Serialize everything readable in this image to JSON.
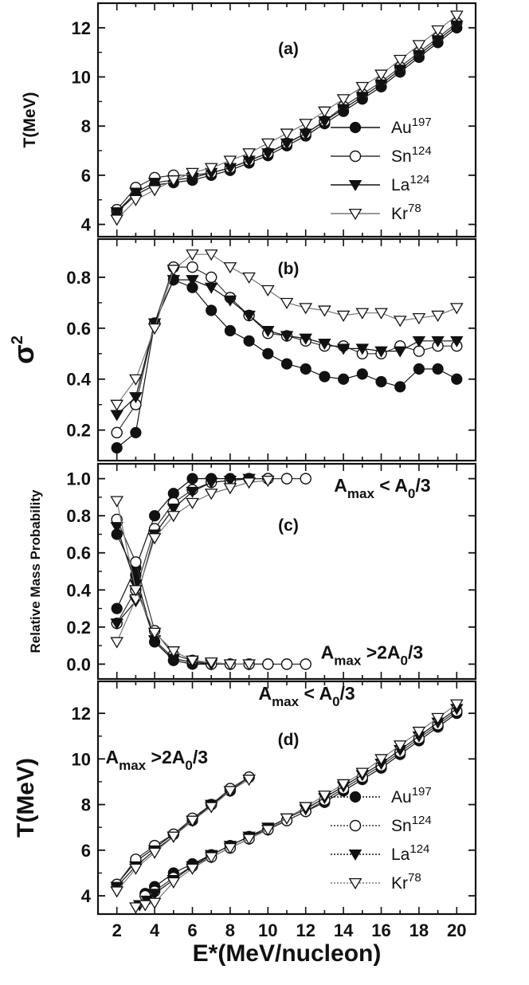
{
  "chart_data": [
    {
      "id": "a",
      "type": "line",
      "panel_label": "(a)",
      "ylabel": "T(MeV)",
      "xlabel": "E*(MeV/nucleon)",
      "xlim": [
        1,
        21
      ],
      "ylim": [
        3.5,
        13
      ],
      "yticks": [
        "4",
        "6",
        "8",
        "10",
        "12"
      ],
      "ytick_values": [
        4,
        6,
        8,
        10,
        12
      ],
      "legend_position": "right",
      "series": [
        {
          "name": "Au",
          "sup": "197",
          "marker": "circle-filled",
          "x": [
            2,
            3,
            4,
            5,
            6,
            7,
            8,
            9,
            10,
            11,
            12,
            13,
            14,
            15,
            16,
            17,
            18,
            19,
            20
          ],
          "y": [
            4.5,
            5.2,
            5.6,
            5.7,
            5.8,
            6.0,
            6.2,
            6.5,
            6.8,
            7.2,
            7.6,
            8.1,
            8.6,
            9.1,
            9.6,
            10.2,
            10.8,
            11.4,
            12.0
          ]
        },
        {
          "name": "Sn",
          "sup": "124",
          "marker": "circle-open",
          "x": [
            2,
            3,
            4,
            5,
            6,
            7,
            8,
            9,
            10,
            11,
            12,
            13,
            14,
            15,
            16,
            17,
            18,
            19,
            20
          ],
          "y": [
            4.6,
            5.5,
            5.9,
            6.0,
            6.0,
            6.1,
            6.3,
            6.6,
            6.9,
            7.3,
            7.7,
            8.2,
            8.8,
            9.3,
            9.8,
            10.4,
            11.0,
            11.6,
            12.2
          ]
        },
        {
          "name": "La",
          "sup": "124",
          "marker": "triangle-down-filled",
          "x": [
            2,
            3,
            4,
            5,
            6,
            7,
            8,
            9,
            10,
            11,
            12,
            13,
            14,
            15,
            16,
            17,
            18,
            19,
            20
          ],
          "y": [
            4.5,
            5.3,
            5.7,
            5.8,
            5.9,
            6.1,
            6.3,
            6.6,
            6.9,
            7.3,
            7.7,
            8.2,
            8.7,
            9.2,
            9.7,
            10.3,
            10.9,
            11.5,
            12.1
          ]
        },
        {
          "name": "Kr",
          "sup": "78",
          "marker": "triangle-down-open",
          "x": [
            2,
            3,
            4,
            5,
            6,
            7,
            8,
            9,
            10,
            11,
            12,
            13,
            14,
            15,
            16,
            17,
            18,
            19,
            20
          ],
          "y": [
            4.2,
            5.0,
            5.4,
            5.8,
            6.1,
            6.3,
            6.6,
            6.9,
            7.3,
            7.7,
            8.1,
            8.6,
            9.1,
            9.6,
            10.1,
            10.7,
            11.3,
            11.9,
            12.5
          ]
        }
      ]
    },
    {
      "id": "b",
      "type": "line",
      "panel_label": "(b)",
      "ylabel": "σ",
      "ylabel_sup": "2",
      "xlim": [
        1,
        21
      ],
      "ylim": [
        0.08,
        0.95
      ],
      "yticks": [
        "0.2",
        "0.4",
        "0.6",
        "0.8"
      ],
      "ytick_values": [
        0.2,
        0.4,
        0.6,
        0.8
      ],
      "series": [
        {
          "name": "Au",
          "marker": "circle-filled",
          "x": [
            2,
            3,
            4,
            5,
            6,
            7,
            8,
            9,
            10,
            11,
            12,
            13,
            14,
            15,
            16,
            17,
            18,
            19,
            20
          ],
          "y": [
            0.13,
            0.19,
            0.62,
            0.79,
            0.76,
            0.67,
            0.59,
            0.55,
            0.5,
            0.46,
            0.44,
            0.41,
            0.4,
            0.42,
            0.39,
            0.37,
            0.44,
            0.44,
            0.4
          ]
        },
        {
          "name": "Sn",
          "marker": "circle-open",
          "x": [
            2,
            3,
            4,
            5,
            6,
            7,
            8,
            9,
            10,
            11,
            12,
            13,
            14,
            15,
            16,
            17,
            18,
            19,
            20
          ],
          "y": [
            0.19,
            0.3,
            0.62,
            0.84,
            0.84,
            0.8,
            0.72,
            0.65,
            0.58,
            0.57,
            0.55,
            0.53,
            0.53,
            0.5,
            0.5,
            0.53,
            0.51,
            0.53,
            0.53
          ]
        },
        {
          "name": "La",
          "marker": "triangle-down-filled",
          "x": [
            2,
            3,
            4,
            5,
            6,
            7,
            8,
            9,
            10,
            11,
            12,
            13,
            14,
            15,
            16,
            17,
            18,
            19,
            20
          ],
          "y": [
            0.26,
            0.33,
            0.62,
            0.79,
            0.79,
            0.76,
            0.71,
            0.65,
            0.59,
            0.57,
            0.56,
            0.54,
            0.52,
            0.52,
            0.51,
            0.51,
            0.55,
            0.55,
            0.55
          ]
        },
        {
          "name": "Kr",
          "marker": "triangle-down-open",
          "x": [
            2,
            3,
            4,
            5,
            6,
            7,
            8,
            9,
            10,
            11,
            12,
            13,
            14,
            15,
            16,
            17,
            18,
            19,
            20
          ],
          "y": [
            0.3,
            0.4,
            0.6,
            0.83,
            0.89,
            0.89,
            0.84,
            0.8,
            0.75,
            0.7,
            0.68,
            0.67,
            0.65,
            0.66,
            0.66,
            0.63,
            0.64,
            0.65,
            0.68
          ]
        }
      ]
    },
    {
      "id": "c",
      "type": "line",
      "panel_label": "(c)",
      "ylabel": "Relative Mass Probability",
      "xlim": [
        1,
        21
      ],
      "ylim": [
        -0.08,
        1.08
      ],
      "yticks": [
        "0.0",
        "0.2",
        "0.4",
        "0.6",
        "0.8",
        "1.0"
      ],
      "ytick_values": [
        0.0,
        0.2,
        0.4,
        0.6,
        0.8,
        1.0
      ],
      "annotations": [
        {
          "main": "A",
          "sub": "max",
          "rest": " < A",
          "sub2": "0",
          "tail": "/3",
          "at": [
            13.5,
            0.93
          ]
        },
        {
          "main": "A",
          "sub": "max",
          "rest": " >2A",
          "sub2": "0",
          "tail": "/3",
          "at": [
            12.8,
            0.03
          ]
        }
      ],
      "series": [
        {
          "name": "Au (A_max < A0/3)",
          "marker": "circle-filled",
          "x": [
            2,
            3,
            4,
            5,
            6,
            7,
            8,
            9,
            10
          ],
          "y": [
            0.3,
            0.52,
            0.8,
            0.92,
            1.0,
            1.0,
            1.0,
            1.0,
            1.0
          ]
        },
        {
          "name": "Sn (A_max < A0/3)",
          "marker": "circle-open",
          "x": [
            2,
            3,
            4,
            5,
            6,
            7,
            8,
            9,
            10,
            11,
            12
          ],
          "y": [
            0.22,
            0.4,
            0.73,
            0.87,
            0.94,
            0.98,
            0.99,
            1.0,
            1.0,
            1.0,
            1.0
          ]
        },
        {
          "name": "La (A_max < A0/3)",
          "marker": "triangle-down-filled",
          "x": [
            2,
            3,
            4,
            5,
            6,
            7,
            8,
            9
          ],
          "y": [
            0.22,
            0.34,
            0.7,
            0.84,
            0.93,
            0.98,
            0.99,
            1.0
          ]
        },
        {
          "name": "Kr (A_max < A0/3)",
          "marker": "triangle-down-open",
          "x": [
            2,
            3,
            4,
            5,
            6,
            7,
            8,
            9,
            10
          ],
          "y": [
            0.12,
            0.35,
            0.68,
            0.8,
            0.87,
            0.92,
            0.95,
            0.98,
            0.99
          ]
        },
        {
          "name": "Au (A_max > 2A0/3)",
          "marker": "circle-filled",
          "x": [
            2,
            3,
            4,
            5,
            6,
            7,
            8,
            9,
            10
          ],
          "y": [
            0.7,
            0.48,
            0.12,
            0.02,
            0.0,
            0.0,
            0.0,
            0.0,
            0.0
          ]
        },
        {
          "name": "Sn (A_max > 2A0/3)",
          "marker": "circle-open",
          "x": [
            2,
            3,
            4,
            5,
            6,
            7,
            8,
            9,
            10,
            11,
            12
          ],
          "y": [
            0.78,
            0.55,
            0.18,
            0.05,
            0.02,
            0.0,
            0.0,
            0.0,
            0.0,
            0.0,
            0.0
          ]
        },
        {
          "name": "La (A_max > 2A0/3)",
          "marker": "triangle-down-filled",
          "x": [
            2,
            3,
            4,
            5,
            6,
            7
          ],
          "y": [
            0.74,
            0.43,
            0.13,
            0.03,
            0.01,
            0.0
          ]
        },
        {
          "name": "Kr (A_max > 2A0/3)",
          "marker": "triangle-down-open",
          "x": [
            2,
            3,
            4,
            5,
            6,
            7,
            8,
            9
          ],
          "y": [
            0.88,
            0.4,
            0.17,
            0.07,
            0.02,
            0.01,
            0.0,
            0.0
          ]
        }
      ]
    },
    {
      "id": "d",
      "type": "line",
      "panel_label": "(d)",
      "ylabel": "T(MeV)",
      "xlabel": "E*(MeV/nucleon)",
      "xlim": [
        1,
        21
      ],
      "ylim": [
        3.2,
        13.4
      ],
      "yticks": [
        "4",
        "6",
        "8",
        "10",
        "12"
      ],
      "ytick_values": [
        4,
        6,
        8,
        10,
        12
      ],
      "xticks": [
        "2",
        "4",
        "6",
        "8",
        "10",
        "12",
        "14",
        "16",
        "18",
        "20"
      ],
      "xtick_values": [
        2,
        4,
        6,
        8,
        10,
        12,
        14,
        16,
        18,
        20
      ],
      "legend_position": "lower-right",
      "annotations": [
        {
          "main": "A",
          "sub": "max",
          "rest": " < A",
          "sub2": "0",
          "tail": "/3",
          "at": [
            9.5,
            12.6
          ]
        },
        {
          "main": "A",
          "sub": "max",
          "rest": " >2A",
          "sub2": "0",
          "tail": "/3",
          "at": [
            1.4,
            9.8
          ]
        }
      ],
      "series": [
        {
          "name": "Au",
          "sup": "197",
          "marker": "circle-filled",
          "x": [
            3.5,
            4,
            5,
            6,
            7,
            8,
            9,
            10,
            11,
            12,
            13,
            14,
            15,
            16,
            17,
            18,
            19,
            20
          ],
          "y": [
            4.1,
            4.4,
            5.0,
            5.4,
            5.8,
            6.2,
            6.6,
            6.9,
            7.3,
            7.7,
            8.1,
            8.6,
            9.1,
            9.6,
            10.2,
            10.8,
            11.4,
            12.0
          ]
        },
        {
          "name": "Sn",
          "sup": "124",
          "marker": "circle-open",
          "x": [
            3.5,
            4,
            5,
            6,
            7,
            8,
            9,
            10,
            11,
            12,
            13,
            14,
            15,
            16,
            17,
            18,
            19,
            20
          ],
          "y": [
            4.0,
            4.2,
            4.8,
            5.3,
            5.7,
            6.1,
            6.5,
            6.9,
            7.3,
            7.7,
            8.2,
            8.7,
            9.2,
            9.7,
            10.3,
            10.9,
            11.5,
            12.1
          ]
        },
        {
          "name": "La",
          "sup": "124",
          "marker": "triangle-down-filled",
          "x": [
            3.2,
            3.6,
            4,
            5,
            6,
            7,
            8,
            9,
            10,
            11,
            12,
            13,
            14,
            15,
            16,
            17,
            18,
            19,
            20
          ],
          "y": [
            3.6,
            3.8,
            4.1,
            4.7,
            5.3,
            5.8,
            6.2,
            6.6,
            7.0,
            7.4,
            7.8,
            8.3,
            8.8,
            9.3,
            9.8,
            10.4,
            11.0,
            11.6,
            12.2
          ]
        },
        {
          "name": "Kr",
          "sup": "78",
          "marker": "triangle-down-open",
          "x": [
            3,
            3.5,
            4,
            5,
            6,
            7,
            8,
            9,
            10,
            11,
            12,
            13,
            14,
            15,
            16,
            17,
            18,
            19,
            20
          ],
          "y": [
            3.5,
            3.6,
            3.7,
            4.6,
            5.2,
            5.7,
            6.1,
            6.5,
            6.9,
            7.4,
            7.9,
            8.4,
            8.9,
            9.4,
            10.0,
            10.6,
            11.2,
            11.8,
            12.4
          ]
        },
        {
          "name": "Au (A_max > 2A0/3)",
          "marker": "circle-filled",
          "x": [
            2,
            3,
            4,
            5,
            6,
            7,
            8,
            9
          ],
          "y": [
            4.5,
            5.5,
            6.1,
            6.7,
            7.3,
            8.0,
            8.6,
            9.2
          ]
        },
        {
          "name": "Sn (A_max > 2A0/3)",
          "marker": "circle-open",
          "x": [
            2,
            3,
            4,
            5,
            6,
            7,
            8,
            9
          ],
          "y": [
            4.5,
            5.6,
            6.2,
            6.7,
            7.4,
            8.0,
            8.7,
            9.2
          ]
        },
        {
          "name": "La (A_max > 2A0/3)",
          "marker": "triangle-down-filled",
          "x": [
            2,
            3,
            4,
            5,
            6,
            7,
            8
          ],
          "y": [
            4.4,
            5.3,
            6.0,
            6.6,
            7.3,
            8.0,
            8.6
          ]
        },
        {
          "name": "Kr (A_max > 2A0/3)",
          "marker": "triangle-down-open",
          "x": [
            2,
            3,
            4,
            5,
            6,
            7,
            8,
            9
          ],
          "y": [
            4.2,
            5.2,
            5.9,
            6.6,
            7.3,
            7.9,
            8.6,
            9.1
          ]
        }
      ]
    }
  ],
  "legend_entries": [
    {
      "name": "Au",
      "sup": "197",
      "marker": "circle-filled"
    },
    {
      "name": "Sn",
      "sup": "124",
      "marker": "circle-open"
    },
    {
      "name": "La",
      "sup": "124",
      "marker": "triangle-down-filled"
    },
    {
      "name": "Kr",
      "sup": "78",
      "marker": "triangle-down-open"
    }
  ],
  "xaxis": {
    "label": "E*(MeV/nucleon)",
    "ticks": [
      "2",
      "4",
      "6",
      "8",
      "10",
      "12",
      "14",
      "16",
      "18",
      "20"
    ]
  }
}
